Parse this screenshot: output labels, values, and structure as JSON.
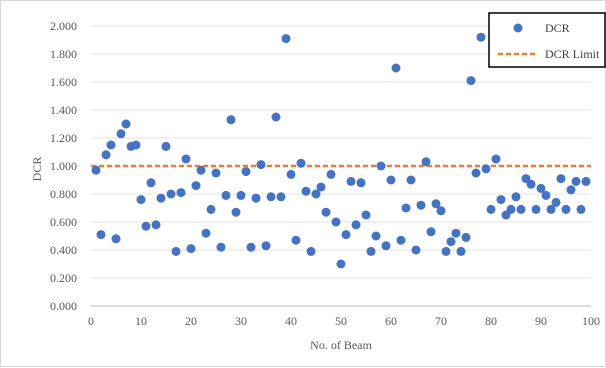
{
  "chart_data": {
    "type": "scatter",
    "xlabel": "No. of Beam",
    "ylabel": "DCR",
    "xlim": [
      0,
      100
    ],
    "ylim": [
      0,
      2
    ],
    "x_ticks": [
      "0",
      "10",
      "20",
      "30",
      "40",
      "50",
      "60",
      "70",
      "80",
      "90",
      "100"
    ],
    "y_ticks": [
      "0.000",
      "0.200",
      "0.400",
      "0.600",
      "0.800",
      "1.000",
      "1.200",
      "1.400",
      "1.600",
      "1.800",
      "2.000"
    ],
    "grid": "horizontal",
    "legend_position": "top-right",
    "series": [
      {
        "name": "DCR",
        "color": "#4472c4",
        "marker": "circle",
        "x": [
          1,
          2,
          3,
          4,
          5,
          6,
          7,
          8,
          9,
          10,
          11,
          12,
          13,
          14,
          15,
          16,
          17,
          18,
          19,
          20,
          21,
          22,
          23,
          24,
          25,
          26,
          27,
          28,
          29,
          30,
          31,
          32,
          33,
          34,
          35,
          36,
          37,
          38,
          39,
          40,
          41,
          42,
          43,
          44,
          45,
          46,
          47,
          48,
          49,
          50,
          51,
          52,
          53,
          54,
          55,
          56,
          57,
          58,
          59,
          60,
          61,
          62,
          63,
          64,
          65,
          66,
          67,
          68,
          69,
          70,
          71,
          72,
          73,
          74,
          75,
          76,
          77,
          78,
          79,
          80,
          81,
          82,
          83,
          84,
          85,
          86,
          87,
          88,
          89,
          90,
          91,
          92,
          93,
          94,
          95,
          96,
          97,
          98,
          99
        ],
        "values": [
          0.97,
          0.51,
          1.08,
          1.15,
          0.48,
          1.23,
          1.3,
          1.14,
          1.15,
          0.76,
          0.57,
          0.88,
          0.58,
          0.77,
          1.14,
          0.8,
          0.39,
          0.81,
          1.05,
          0.41,
          0.86,
          0.97,
          0.52,
          0.69,
          0.95,
          0.42,
          0.79,
          1.33,
          0.67,
          0.79,
          0.96,
          0.42,
          0.77,
          1.01,
          0.43,
          0.78,
          1.35,
          0.78,
          1.91,
          0.94,
          0.47,
          1.02,
          0.82,
          0.39,
          0.8,
          0.85,
          0.67,
          0.94,
          0.6,
          0.3,
          0.51,
          0.89,
          0.58,
          0.88,
          0.65,
          0.39,
          0.5,
          1.0,
          0.43,
          0.9,
          1.7,
          0.47,
          0.7,
          0.9,
          0.4,
          0.72,
          1.03,
          0.53,
          0.73,
          0.68,
          0.39,
          0.46,
          0.52,
          0.39,
          0.49,
          1.61,
          0.95,
          1.92,
          0.98,
          0.69,
          1.05,
          0.76,
          0.65,
          0.69,
          0.78,
          0.69,
          0.91,
          0.87,
          0.69,
          0.84,
          0.79,
          0.69,
          0.74,
          0.91,
          0.69,
          0.83,
          0.89,
          0.69,
          0.89
        ]
      },
      {
        "name": "DCR Limit",
        "color": "#ed7d31",
        "style": "dashed",
        "x": [
          0,
          100
        ],
        "values": [
          1.0,
          1.0
        ]
      }
    ]
  }
}
